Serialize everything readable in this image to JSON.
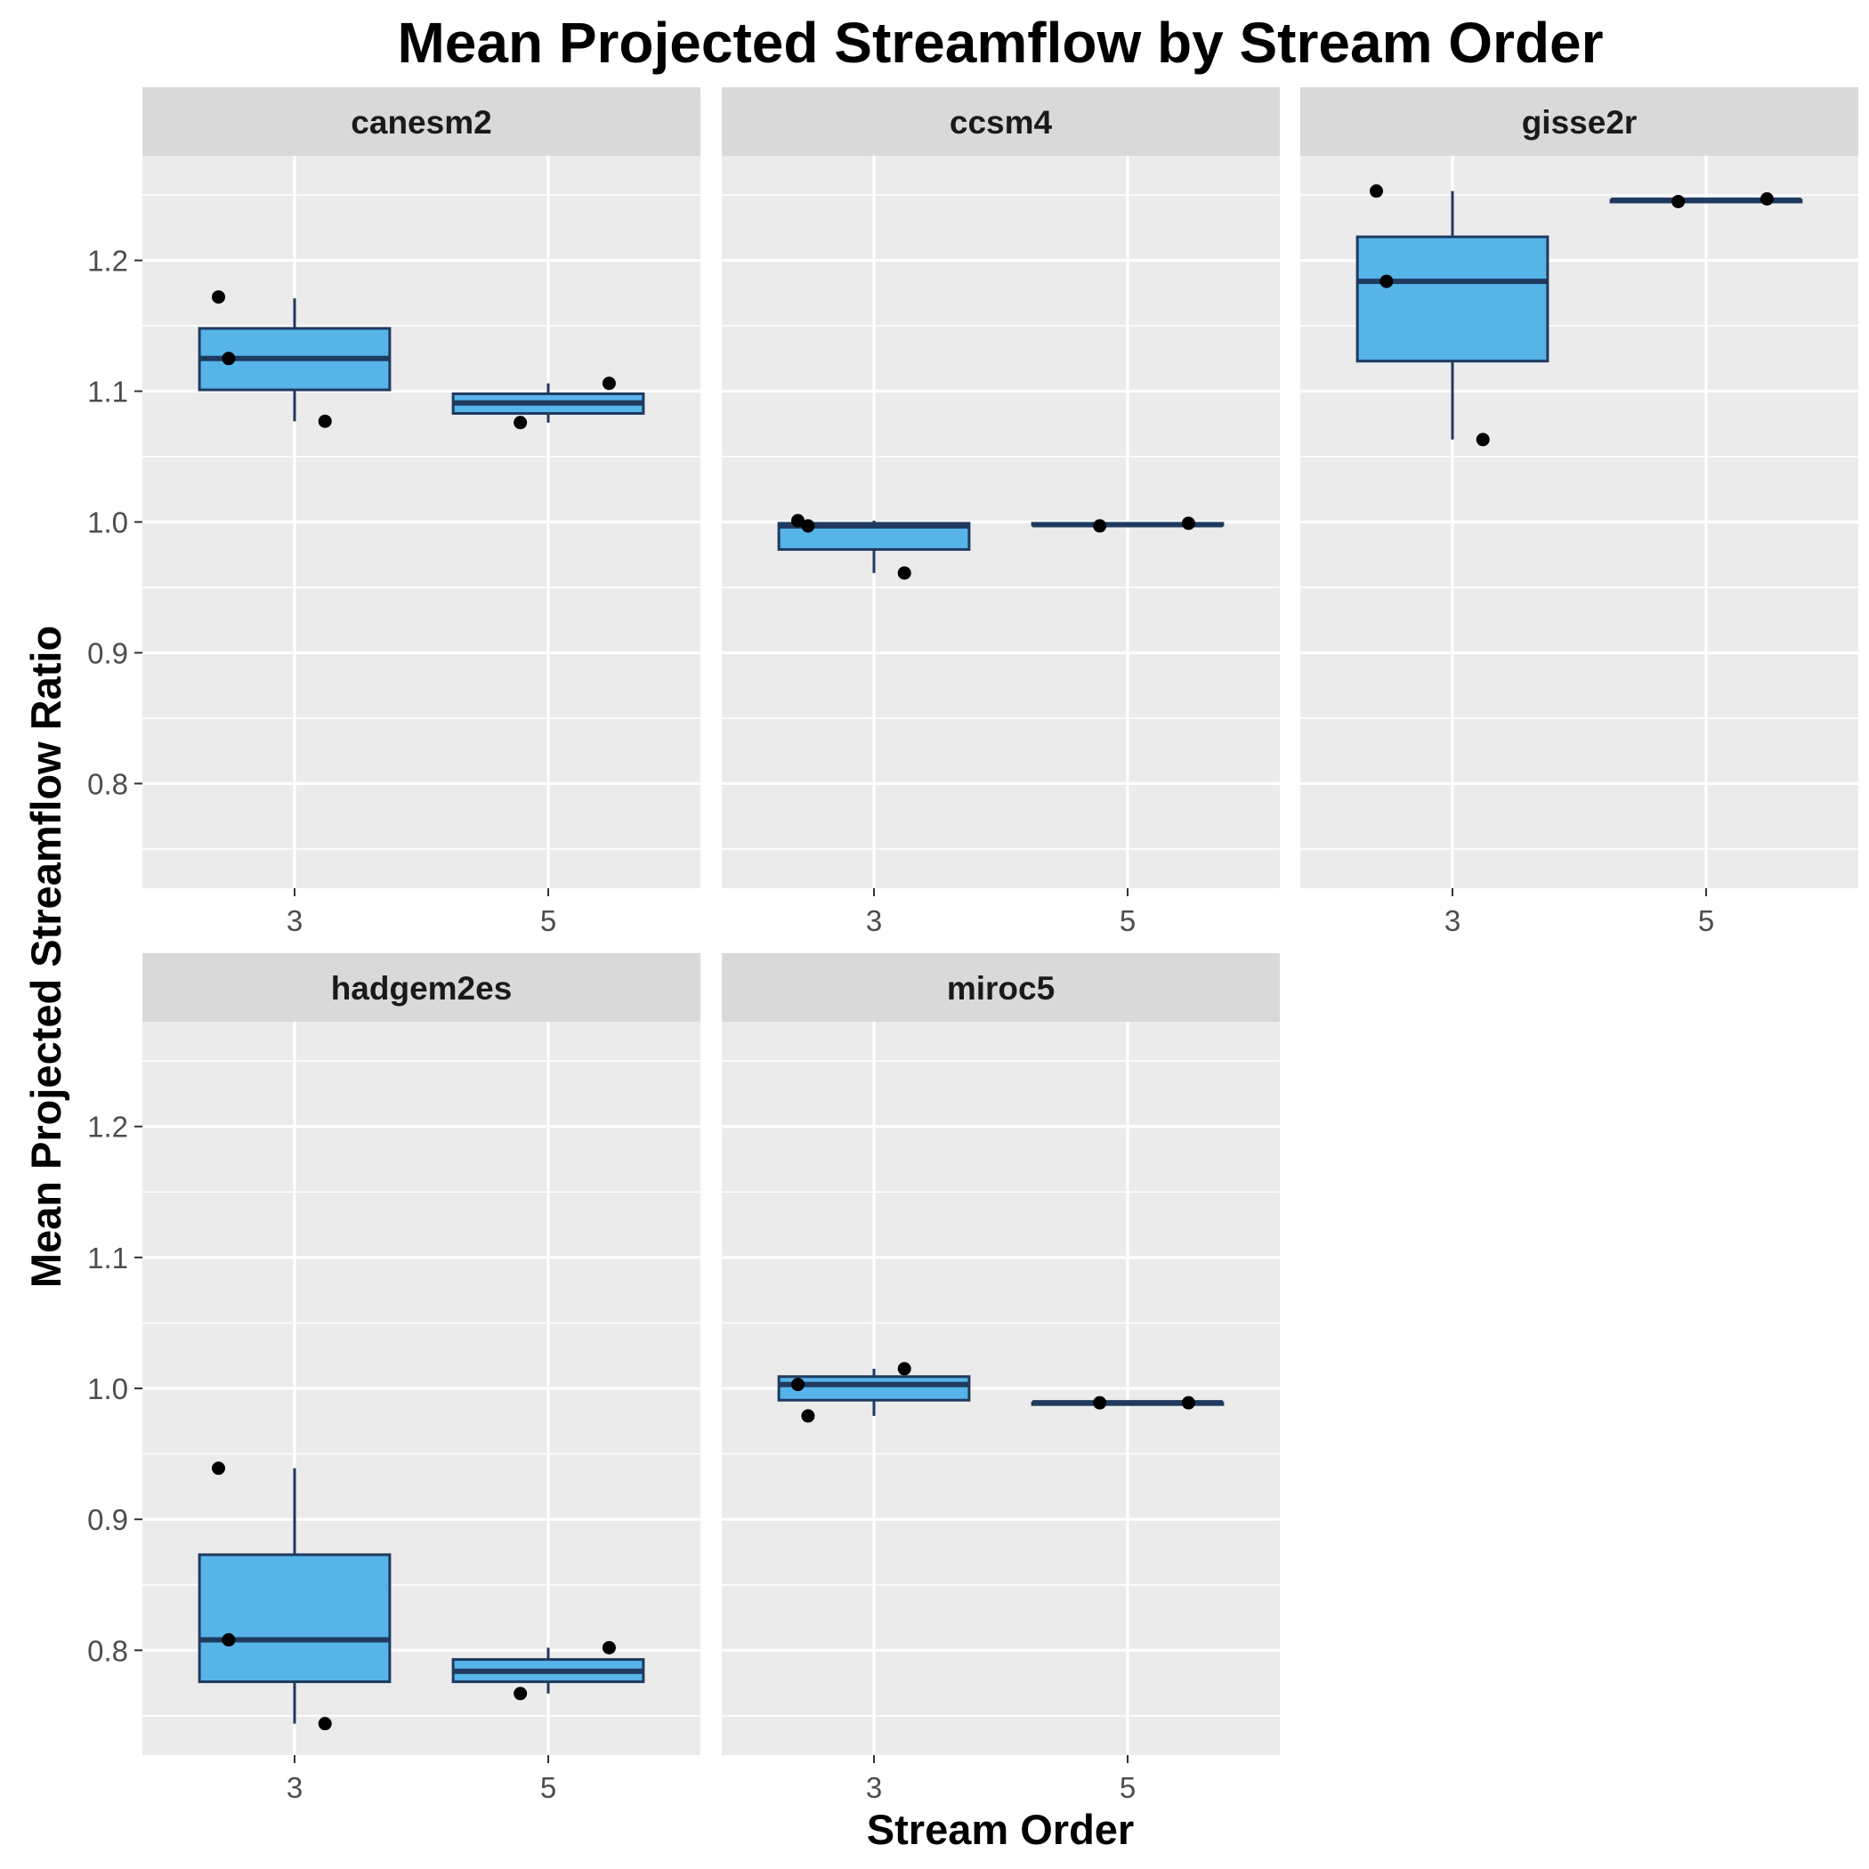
{
  "chart_data": {
    "type": "box",
    "title": "Mean Projected Streamflow by Stream Order",
    "xlabel": "Stream Order",
    "ylabel": "Mean Projected Streamflow Ratio",
    "categories": [
      "3",
      "5"
    ],
    "y_ticks": [
      0.8,
      0.9,
      1.0,
      1.1,
      1.2
    ],
    "ylim": [
      0.72,
      1.28
    ],
    "layout": "facet-wrap 3 columns",
    "grid": true,
    "colors": {
      "panel_bg": "#ebebeb",
      "strip_bg": "#d9d9d9",
      "grid": "#ffffff",
      "box_fill": "#56b4e9",
      "box_line": "#1f3a5f",
      "point": "#000000"
    },
    "facets": [
      {
        "name": "canesm2",
        "boxes": [
          {
            "x": "3",
            "min": 1.077,
            "q1": 1.101,
            "median": 1.125,
            "q3": 1.148,
            "max": 1.171,
            "points": [
              1.172,
              1.125,
              1.077
            ]
          },
          {
            "x": "5",
            "min": 1.076,
            "q1": 1.083,
            "median": 1.091,
            "q3": 1.098,
            "max": 1.106,
            "points": [
              1.076,
              1.106
            ]
          }
        ]
      },
      {
        "name": "ccsm4",
        "boxes": [
          {
            "x": "3",
            "min": 0.961,
            "q1": 0.979,
            "median": 0.997,
            "q3": 0.999,
            "max": 1.001,
            "points": [
              1.001,
              0.997,
              0.961
            ]
          },
          {
            "x": "5",
            "min": 0.997,
            "q1": 0.998,
            "median": 0.998,
            "q3": 0.999,
            "max": 0.999,
            "points": [
              0.997,
              0.999
            ]
          }
        ]
      },
      {
        "name": "gisse2r",
        "boxes": [
          {
            "x": "3",
            "min": 1.063,
            "q1": 1.123,
            "median": 1.184,
            "q3": 1.218,
            "max": 1.253,
            "points": [
              1.253,
              1.184,
              1.063
            ]
          },
          {
            "x": "5",
            "min": 1.245,
            "q1": 1.245,
            "median": 1.246,
            "q3": 1.246,
            "max": 1.247,
            "points": [
              1.245,
              1.247
            ]
          }
        ]
      },
      {
        "name": "hadgem2es",
        "boxes": [
          {
            "x": "3",
            "min": 0.744,
            "q1": 0.776,
            "median": 0.808,
            "q3": 0.873,
            "max": 0.939,
            "points": [
              0.939,
              0.808,
              0.744
            ]
          },
          {
            "x": "5",
            "min": 0.767,
            "q1": 0.776,
            "median": 0.784,
            "q3": 0.793,
            "max": 0.802,
            "points": [
              0.767,
              0.802
            ]
          }
        ]
      },
      {
        "name": "miroc5",
        "boxes": [
          {
            "x": "3",
            "min": 0.979,
            "q1": 0.991,
            "median": 1.003,
            "q3": 1.009,
            "max": 1.015,
            "points": [
              1.003,
              0.979,
              1.015
            ]
          },
          {
            "x": "5",
            "min": 0.989,
            "q1": 0.989,
            "median": 0.989,
            "q3": 0.989,
            "max": 0.989,
            "points": [
              0.989,
              0.989
            ]
          }
        ]
      }
    ]
  }
}
